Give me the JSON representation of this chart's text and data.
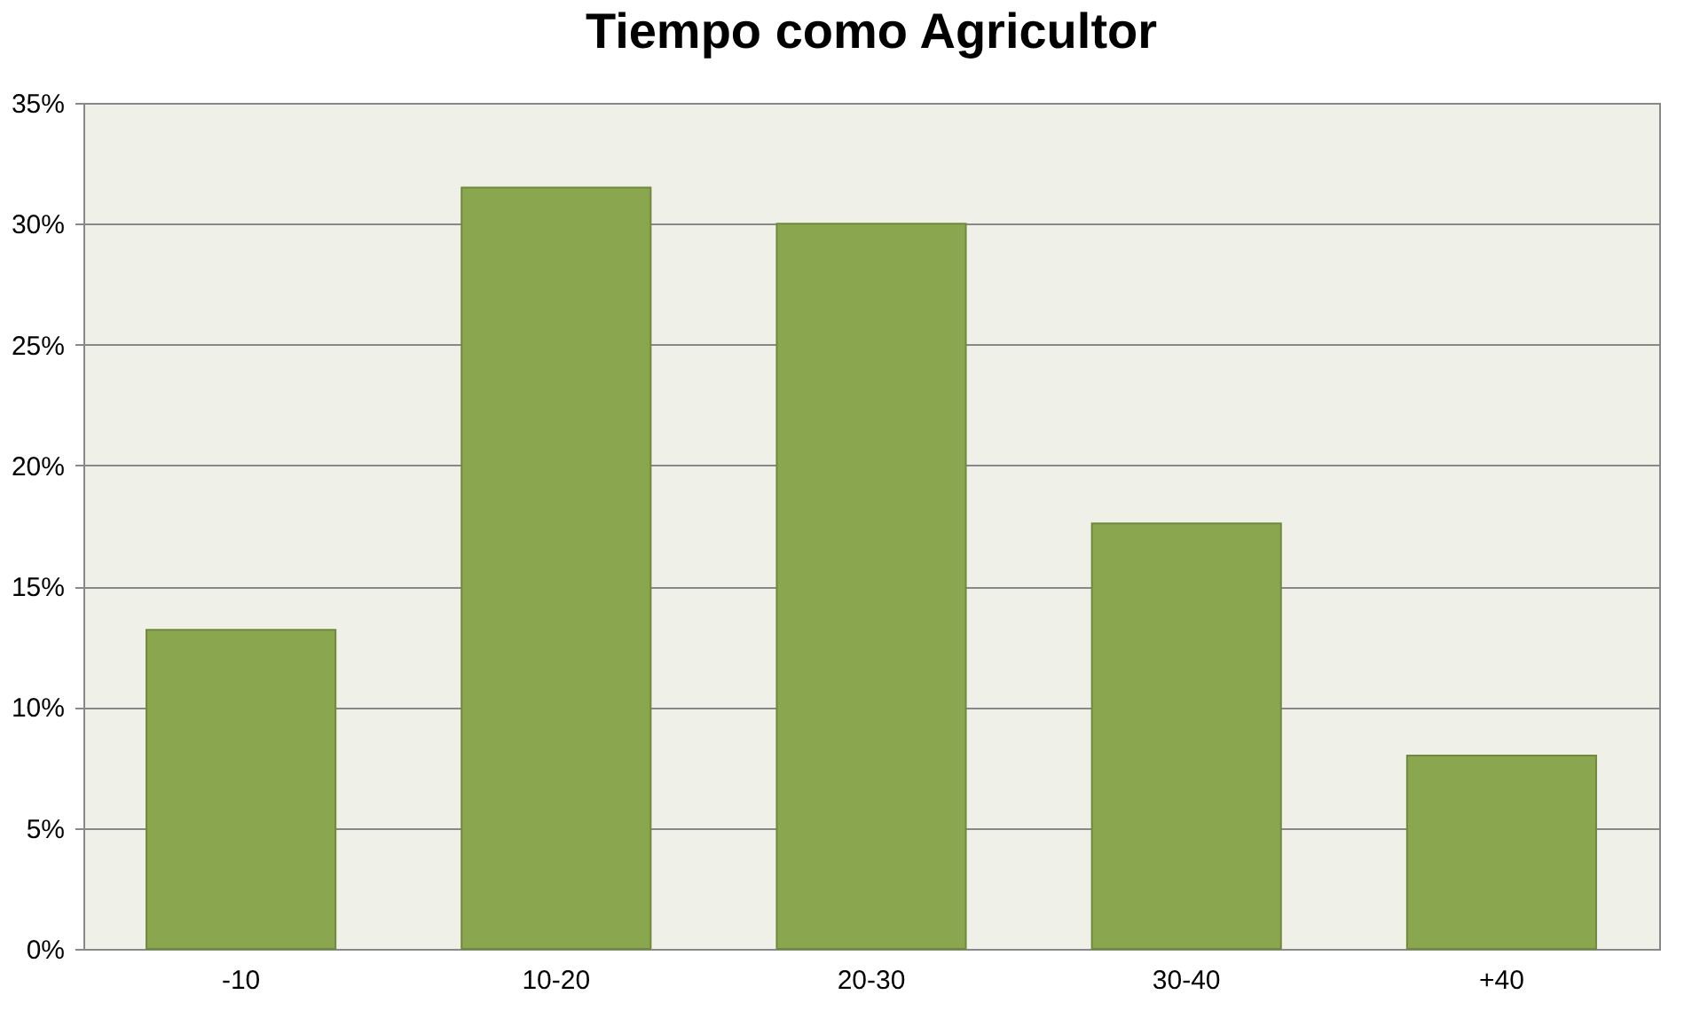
{
  "chart_data": {
    "type": "bar",
    "title": "Tiempo como Agricultor",
    "categories": [
      "-10",
      "10-20",
      "20-30",
      "30-40",
      "+40"
    ],
    "values": [
      13.2,
      31.5,
      30.0,
      17.6,
      8.0
    ],
    "color": "#8aa64f",
    "ylim": [
      0,
      35
    ],
    "yticks": [
      {
        "value": 0,
        "label": "0%"
      },
      {
        "value": 5,
        "label": "5%"
      },
      {
        "value": 10,
        "label": "10%"
      },
      {
        "value": 15,
        "label": "15%"
      },
      {
        "value": 20,
        "label": "20%"
      },
      {
        "value": 25,
        "label": "25%"
      },
      {
        "value": 30,
        "label": "30%"
      },
      {
        "value": 35,
        "label": "35%"
      }
    ],
    "grid": "y"
  }
}
